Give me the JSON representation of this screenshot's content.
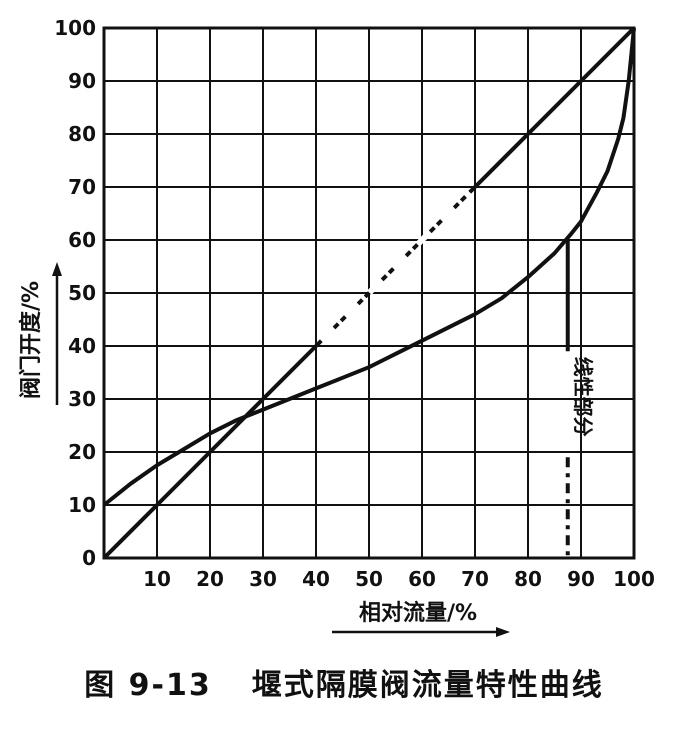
{
  "chart_data": {
    "type": "line",
    "caption_number": "图 9-13",
    "caption_title": "堰式隔膜阀流量特性曲线",
    "xlabel": "相对流量/%",
    "ylabel": "阀门开度/%",
    "xlim": [
      0,
      100
    ],
    "ylim": [
      0,
      100
    ],
    "x_ticks": [
      "10",
      "20",
      "30",
      "40",
      "50",
      "60",
      "70",
      "80",
      "90",
      "100"
    ],
    "y_ticks": [
      "0",
      "10",
      "20",
      "30",
      "40",
      "50",
      "60",
      "70",
      "80",
      "90",
      "100"
    ],
    "grid": true,
    "series": [
      {
        "x": [
          0,
          10,
          20,
          30,
          40,
          50,
          60,
          70,
          80,
          90,
          100
        ],
        "y": [
          0,
          10,
          20,
          30,
          40,
          50,
          60,
          70,
          80,
          90,
          100
        ]
      },
      {
        "x": [
          0,
          5,
          10,
          15,
          20,
          25,
          30,
          35,
          40,
          45,
          50,
          55,
          60,
          65,
          70,
          75,
          80,
          85,
          88,
          90,
          93,
          95,
          97,
          98,
          99,
          100
        ],
        "y": [
          10,
          14,
          17.5,
          20.5,
          23.5,
          26,
          28,
          30,
          32,
          34,
          36,
          38.5,
          41,
          43.5,
          46,
          49,
          53,
          57.5,
          61,
          63.5,
          69,
          73,
          79,
          83,
          90,
          100
        ]
      }
    ],
    "annotations": [
      {
        "text": "线性部分",
        "x": 87.5,
        "y_range": [
          0,
          60
        ]
      },
      {
        "text": "线性部分",
        "x": 90,
        "y_range": [
          0,
          100
        ]
      }
    ]
  }
}
